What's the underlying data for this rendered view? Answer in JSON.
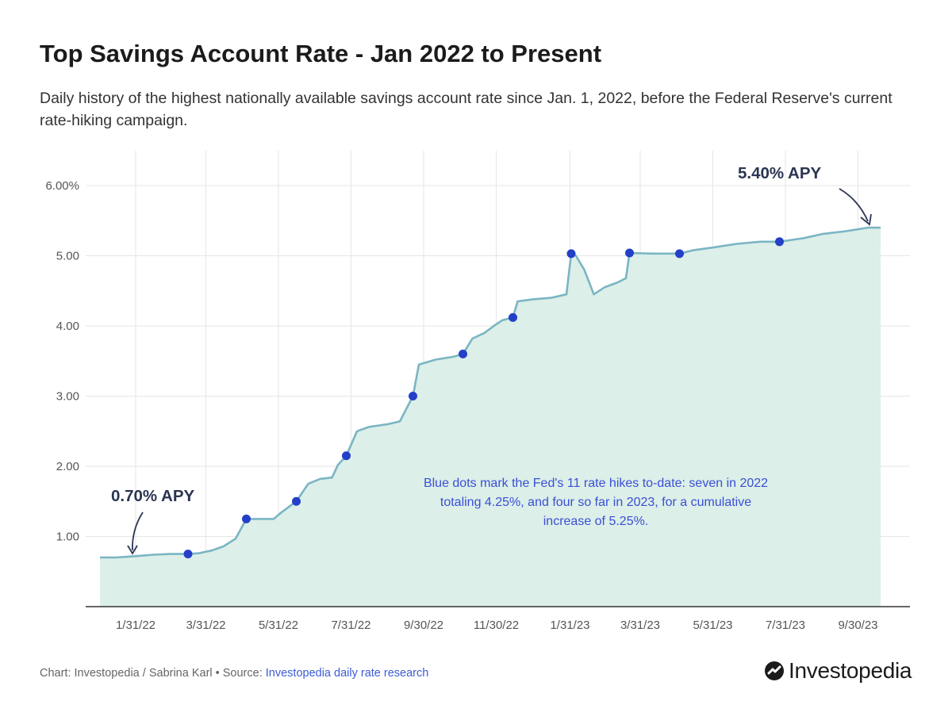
{
  "title": "Top Savings Account Rate - Jan 2022 to Present",
  "subtitle": "Daily history of the highest nationally available savings account rate since Jan. 1, 2022, before the Federal Reserve's current rate-hiking campaign.",
  "footer": {
    "prefix": "Chart: Investopedia / Sabrina Karl • Source: ",
    "source_link": "Investopedia daily rate research"
  },
  "logo": {
    "text": "Investopedia"
  },
  "colors": {
    "line": "#7ab5c4",
    "area": "#dcefe8",
    "dot": "#2440c8",
    "note": "#3a4fd6",
    "callout": "#2b3552",
    "grid": "#e6e6e6"
  },
  "chart_data": {
    "type": "area",
    "x_ticks": [
      "1/31/22",
      "3/31/22",
      "5/31/22",
      "7/31/22",
      "9/30/22",
      "11/30/22",
      "1/31/23",
      "3/31/23",
      "5/31/23",
      "7/31/23",
      "9/30/23"
    ],
    "y_ticks": [
      "",
      "1.00",
      "2.00",
      "3.00",
      "4.00",
      "5.00",
      "6.00%"
    ],
    "ylim": [
      0,
      6
    ],
    "xlim": [
      "2022-01-01",
      "2023-10-19"
    ],
    "grid": true,
    "series": [
      {
        "points": [
          [
            "2022-01-01",
            0.7
          ],
          [
            "2022-01-15",
            0.7
          ],
          [
            "2022-01-31",
            0.72
          ],
          [
            "2022-02-15",
            0.74
          ],
          [
            "2022-03-01",
            0.75
          ],
          [
            "2022-03-16",
            0.75
          ],
          [
            "2022-03-25",
            0.76
          ],
          [
            "2022-04-05",
            0.8
          ],
          [
            "2022-04-15",
            0.86
          ],
          [
            "2022-04-25",
            0.97
          ],
          [
            "2022-05-04",
            1.25
          ],
          [
            "2022-05-15",
            1.25
          ],
          [
            "2022-05-27",
            1.25
          ],
          [
            "2022-06-03",
            1.35
          ],
          [
            "2022-06-15",
            1.5
          ],
          [
            "2022-06-25",
            1.75
          ],
          [
            "2022-07-05",
            1.82
          ],
          [
            "2022-07-15",
            1.84
          ],
          [
            "2022-07-20",
            2.02
          ],
          [
            "2022-07-27",
            2.15
          ],
          [
            "2022-08-05",
            2.5
          ],
          [
            "2022-08-15",
            2.56
          ],
          [
            "2022-08-31",
            2.6
          ],
          [
            "2022-09-10",
            2.64
          ],
          [
            "2022-09-21",
            3.0
          ],
          [
            "2022-09-26",
            3.45
          ],
          [
            "2022-10-10",
            3.52
          ],
          [
            "2022-10-25",
            3.56
          ],
          [
            "2022-11-02",
            3.6
          ],
          [
            "2022-11-10",
            3.82
          ],
          [
            "2022-11-20",
            3.9
          ],
          [
            "2022-11-28",
            4.0
          ],
          [
            "2022-12-05",
            4.08
          ],
          [
            "2022-12-14",
            4.12
          ],
          [
            "2022-12-18",
            4.35
          ],
          [
            "2022-12-31",
            4.38
          ],
          [
            "2023-01-15",
            4.4
          ],
          [
            "2023-01-28",
            4.45
          ],
          [
            "2023-02-01",
            5.03
          ],
          [
            "2023-02-05",
            5.0
          ],
          [
            "2023-02-12",
            4.8
          ],
          [
            "2023-02-20",
            4.45
          ],
          [
            "2023-03-01",
            4.55
          ],
          [
            "2023-03-12",
            4.62
          ],
          [
            "2023-03-19",
            4.68
          ],
          [
            "2023-03-22",
            5.04
          ],
          [
            "2023-04-10",
            5.03
          ],
          [
            "2023-04-25",
            5.03
          ],
          [
            "2023-05-03",
            5.03
          ],
          [
            "2023-05-15",
            5.08
          ],
          [
            "2023-06-01",
            5.12
          ],
          [
            "2023-06-20",
            5.17
          ],
          [
            "2023-07-10",
            5.2
          ],
          [
            "2023-07-26",
            5.2
          ],
          [
            "2023-08-15",
            5.25
          ],
          [
            "2023-08-31",
            5.31
          ],
          [
            "2023-09-20",
            5.35
          ],
          [
            "2023-10-01",
            5.38
          ],
          [
            "2023-10-08",
            5.4
          ],
          [
            "2023-10-19",
            5.4
          ]
        ]
      }
    ],
    "rate_hike_dots": [
      [
        "2022-03-16",
        0.75
      ],
      [
        "2022-05-04",
        1.25
      ],
      [
        "2022-06-15",
        1.5
      ],
      [
        "2022-07-27",
        2.15
      ],
      [
        "2022-09-21",
        3.0
      ],
      [
        "2022-11-02",
        3.6
      ],
      [
        "2022-12-14",
        4.12
      ],
      [
        "2023-02-01",
        5.03
      ],
      [
        "2023-03-22",
        5.04
      ],
      [
        "2023-05-03",
        5.03
      ],
      [
        "2023-07-26",
        5.2
      ]
    ],
    "annotations": {
      "note": "Blue dots mark the Fed's 11 rate hikes to-date: seven in 2022 totaling 4.25%, and four so far in 2023, for a cumulative increase of 5.25%.",
      "start_label": "0.70% APY",
      "end_label": "5.40% APY"
    }
  }
}
